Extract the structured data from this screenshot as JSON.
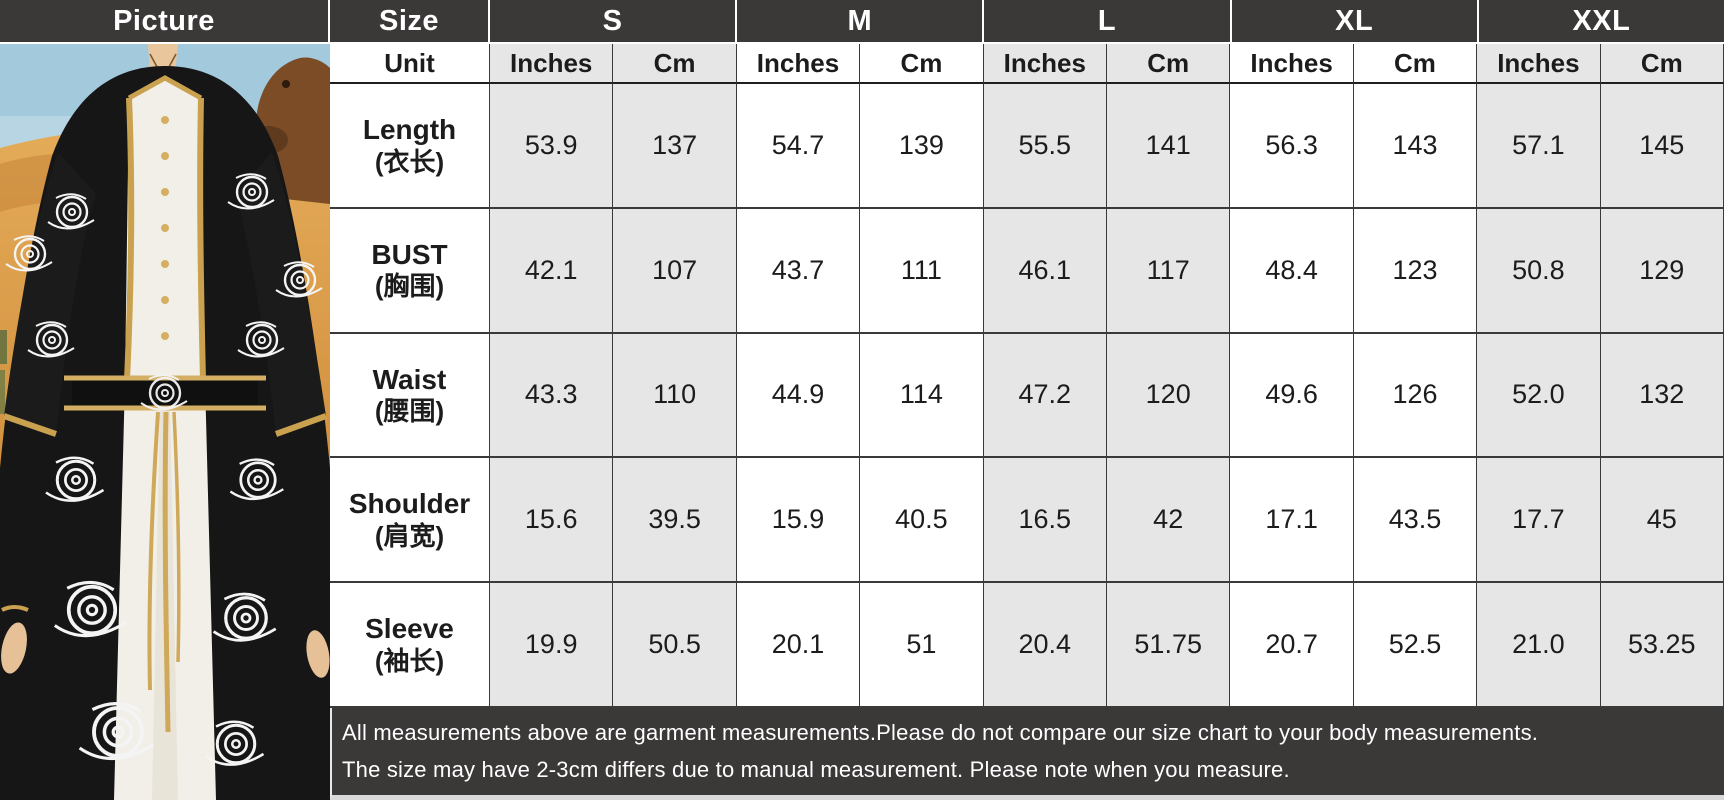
{
  "table": {
    "picture_label": "Picture",
    "size_label": "Size",
    "unit_label": "Unit",
    "sizes": [
      "S",
      "M",
      "L",
      "XL",
      "XXL"
    ],
    "unit_columns": [
      "Inches",
      "Cm"
    ],
    "rows": [
      {
        "label_en": "Length",
        "label_zh": "(衣长)",
        "values": [
          [
            "53.9",
            "137"
          ],
          [
            "54.7",
            "139"
          ],
          [
            "55.5",
            "141"
          ],
          [
            "56.3",
            "143"
          ],
          [
            "57.1",
            "145"
          ]
        ]
      },
      {
        "label_en": "BUST",
        "label_zh": "(胸围)",
        "values": [
          [
            "42.1",
            "107"
          ],
          [
            "43.7",
            "111"
          ],
          [
            "46.1",
            "117"
          ],
          [
            "48.4",
            "123"
          ],
          [
            "50.8",
            "129"
          ]
        ]
      },
      {
        "label_en": "Waist",
        "label_zh": "(腰围)",
        "values": [
          [
            "43.3",
            "110"
          ],
          [
            "44.9",
            "114"
          ],
          [
            "47.2",
            "120"
          ],
          [
            "49.6",
            "126"
          ],
          [
            "52.0",
            "132"
          ]
        ]
      },
      {
        "label_en": "Shoulder",
        "label_zh": "(肩宽)",
        "values": [
          [
            "15.6",
            "39.5"
          ],
          [
            "15.9",
            "40.5"
          ],
          [
            "16.5",
            "42"
          ],
          [
            "17.1",
            "43.5"
          ],
          [
            "17.7",
            "45"
          ]
        ]
      },
      {
        "label_en": "Sleeve",
        "label_zh": "(袖长)",
        "values": [
          [
            "19.9",
            "50.5"
          ],
          [
            "20.1",
            "51"
          ],
          [
            "20.4",
            "51.75"
          ],
          [
            "20.7",
            "52.5"
          ],
          [
            "21.0",
            "53.25"
          ]
        ]
      }
    ]
  },
  "notes": {
    "line1": "All measurements above are garment measurements.Please do not compare our size chart to your body measurements.",
    "line2": "The size may have 2-3cm differs due to manual measurement. Please note when you measure."
  },
  "colors": {
    "header_bg": "#3b3838",
    "note_bg": "#3b3838",
    "shade_bg": "#e7e6e6",
    "cell_bg": "#ffffff",
    "border": "#3a3a3a",
    "sky": "#a3c9dd",
    "sand": "#d99a4e",
    "robe_black": "#161616",
    "dress_white": "#f2efe8",
    "trim_gold": "#c9a14f"
  }
}
